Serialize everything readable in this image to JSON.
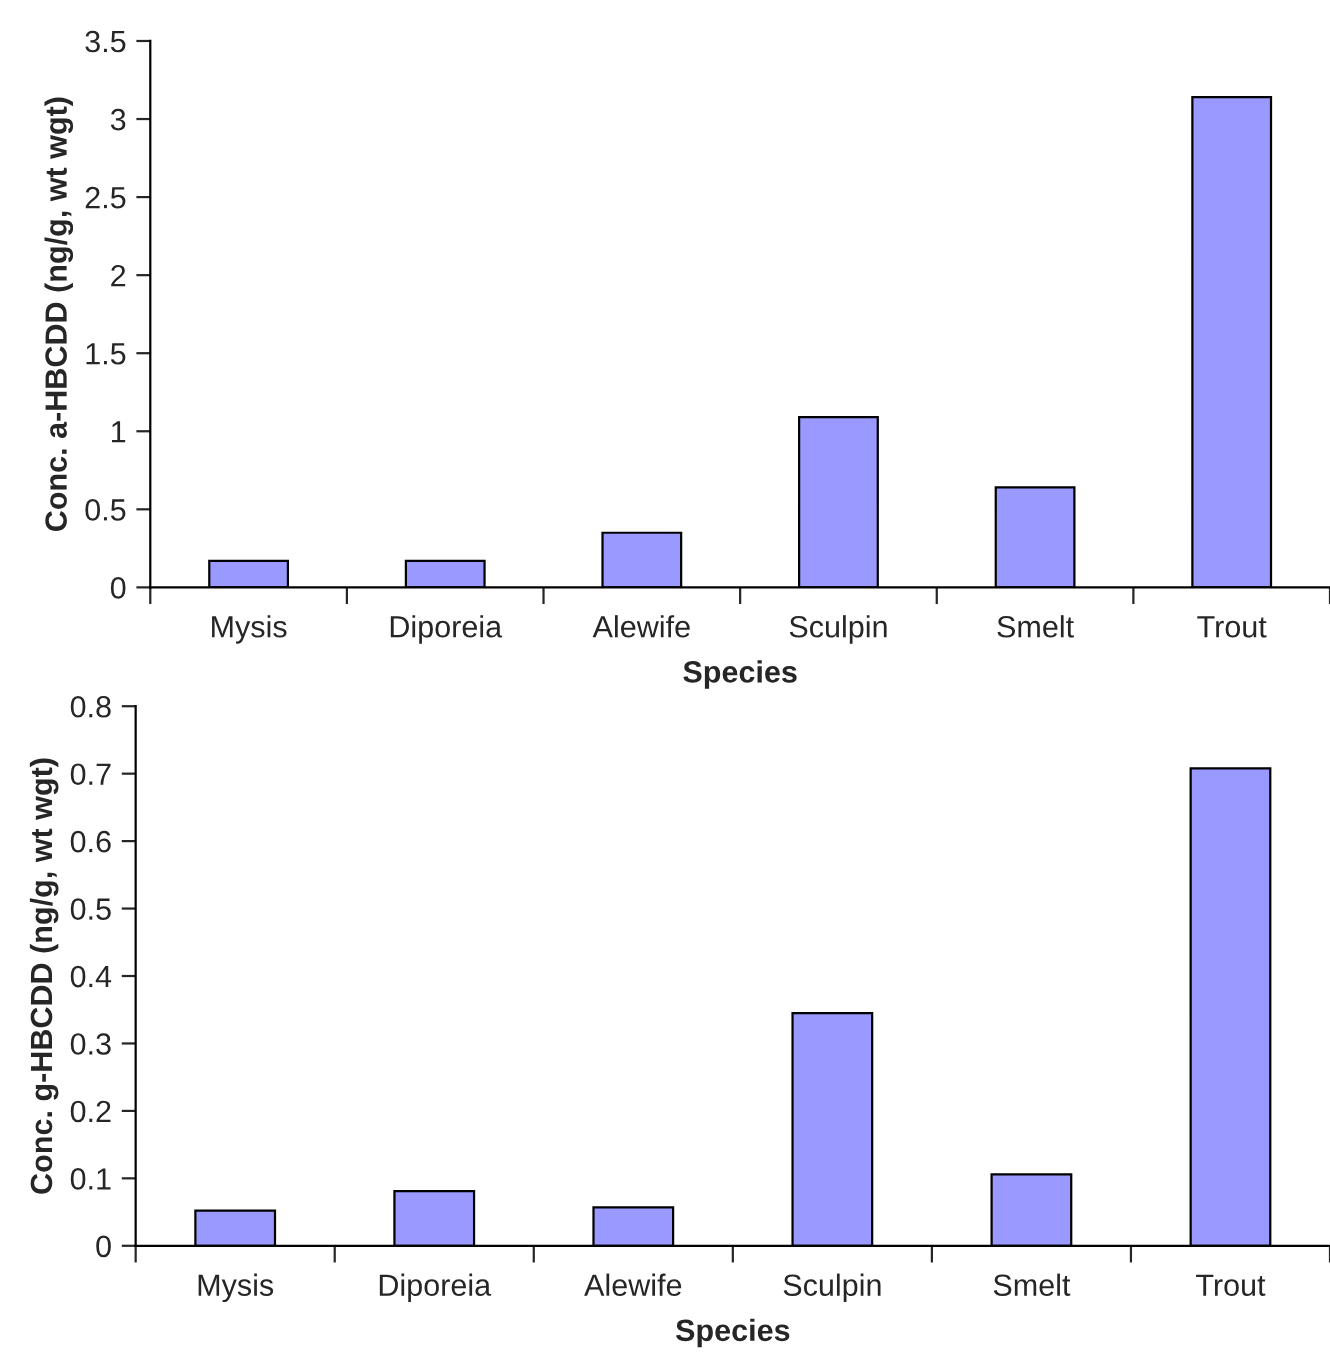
{
  "chart_data": [
    {
      "type": "bar",
      "xlabel": "Species",
      "ylabel": "Conc. a-HBCDD (ng/g, wt wgt)",
      "categories": [
        "Mysis",
        "Diporeia",
        "Alewife",
        "Sculpin",
        "Smelt",
        "Trout"
      ],
      "series": [
        {
          "color": "#9999ff",
          "values": [
            0.17,
            0.17,
            0.35,
            1.09,
            0.64,
            3.14
          ]
        }
      ],
      "ylim": [
        0,
        3.5
      ],
      "yticks": [
        0,
        0.5,
        1,
        1.5,
        2,
        2.5,
        3,
        3.5
      ],
      "grid": false,
      "legend": false
    },
    {
      "type": "bar",
      "xlabel": "Species",
      "ylabel": "Conc. g-HBCDD (ng/g, wt wgt)",
      "categories": [
        "Mysis",
        "Diporeia",
        "Alewife",
        "Sculpin",
        "Smelt",
        "Trout"
      ],
      "series": [
        {
          "color": "#9999ff",
          "values": [
            0.052,
            0.081,
            0.057,
            0.345,
            0.106,
            0.708
          ]
        }
      ],
      "ylim": [
        0,
        0.8
      ],
      "yticks": [
        0,
        0.1,
        0.2,
        0.3,
        0.4,
        0.5,
        0.6,
        0.7,
        0.8
      ],
      "grid": false,
      "legend": false
    }
  ]
}
